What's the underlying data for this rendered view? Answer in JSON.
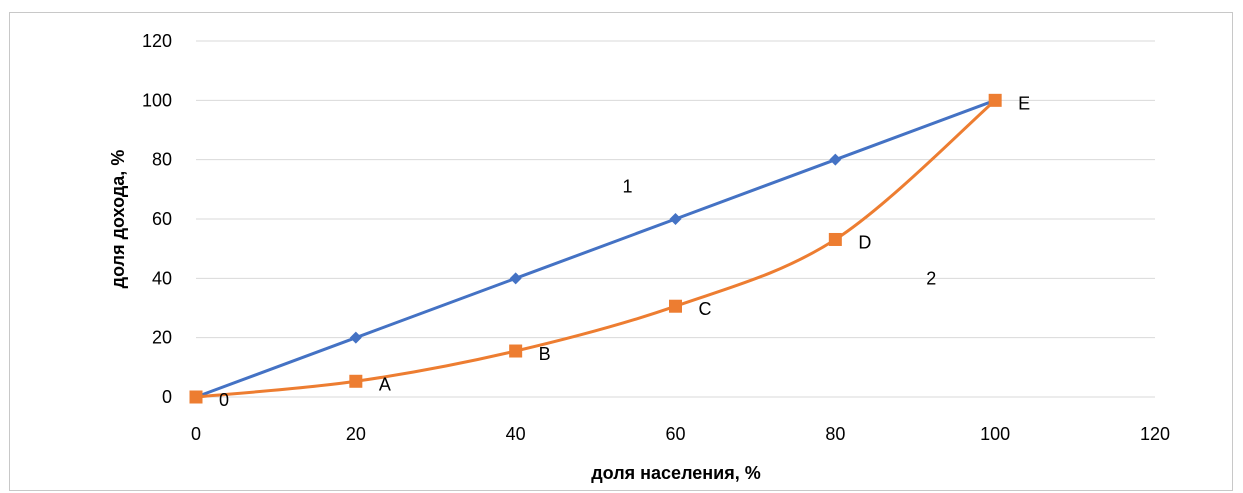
{
  "chart_data": {
    "type": "line",
    "xlabel": "доля населения, %",
    "ylabel": "доля дохода, %",
    "xlim": [
      0,
      120
    ],
    "ylim": [
      0,
      120
    ],
    "xticks": [
      "0",
      "20",
      "40",
      "60",
      "80",
      "100",
      "120"
    ],
    "yticks": [
      "0",
      "20",
      "40",
      "60",
      "80",
      "100",
      "120"
    ],
    "grid": "horizontal",
    "legend": "none",
    "series": [
      {
        "id": "1",
        "color": "#4472c4",
        "marker": "diamond",
        "x": [
          0,
          20,
          40,
          60,
          80,
          100
        ],
        "values": [
          0,
          20,
          40,
          60,
          80,
          100
        ]
      },
      {
        "id": "2",
        "color": "#ed7d31",
        "marker": "square",
        "x": [
          0,
          20,
          40,
          60,
          80,
          100
        ],
        "values": [
          0,
          5.3,
          15.5,
          30.6,
          53.1,
          100
        ],
        "point_labels": [
          "0",
          "A",
          "B",
          "C",
          "D",
          "E"
        ]
      }
    ],
    "annotations": [
      {
        "text": "1",
        "x": 54,
        "y": 69
      },
      {
        "text": "2",
        "x": 92,
        "y": 38
      }
    ]
  }
}
